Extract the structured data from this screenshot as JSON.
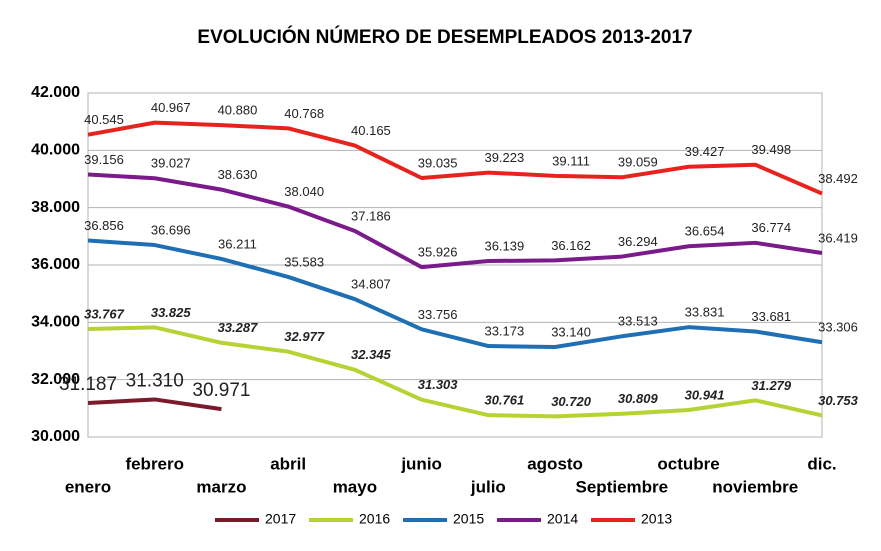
{
  "chart_data": {
    "type": "line",
    "title": "EVOLUCIÓN NÚMERO DE DESEMPLEADOS 2013-2017",
    "categories": [
      "enero",
      "febrero",
      "marzo",
      "abril",
      "mayo",
      "junio",
      "julio",
      "agosto",
      "Septiembre",
      "octubre",
      "noviembre",
      "dic."
    ],
    "series": [
      {
        "name": "2017",
        "color": "#7b1a2a",
        "values": [
          31187,
          31310,
          30971,
          null,
          null,
          null,
          null,
          null,
          null,
          null,
          null,
          null
        ],
        "value_labels": [
          "31.187",
          "31.310",
          "30.971",
          null,
          null,
          null,
          null,
          null,
          null,
          null,
          null,
          null
        ]
      },
      {
        "name": "2016",
        "color": "#b5d334",
        "values": [
          33767,
          33825,
          33287,
          32977,
          32345,
          31303,
          30761,
          30720,
          30809,
          30941,
          31279,
          30753
        ],
        "value_labels": [
          "33.767",
          "33.825",
          "33.287",
          "32.977",
          "32.345",
          "31.303",
          "30.761",
          "30.720",
          "30.809",
          "30.941",
          "31.279",
          "30.753"
        ]
      },
      {
        "name": "2015",
        "color": "#1f6fb5",
        "values": [
          36856,
          36696,
          36211,
          35583,
          34807,
          33756,
          33173,
          33140,
          33513,
          33831,
          33681,
          33306
        ],
        "value_labels": [
          "36.856",
          "36.696",
          "36.211",
          "35.583",
          "34.807",
          "33.756",
          "33.173",
          "33.140",
          "33.513",
          "33.831",
          "33.681",
          "33.306"
        ]
      },
      {
        "name": "2014",
        "color": "#7b1a8a",
        "values": [
          39156,
          39027,
          38630,
          38040,
          37186,
          35926,
          36139,
          36162,
          36294,
          36654,
          36774,
          36419
        ],
        "value_labels": [
          "39.156",
          "39.027",
          "38.630",
          "38.040",
          "37.186",
          "35.926",
          "36.139",
          "36.162",
          "36.294",
          "36.654",
          "36.774",
          "36.419"
        ]
      },
      {
        "name": "2013",
        "color": "#e8231e",
        "values": [
          40545,
          40967,
          40880,
          40768,
          40165,
          39035,
          39223,
          39111,
          39059,
          39427,
          39498,
          38492
        ],
        "value_labels": [
          "40.545",
          "40.967",
          "40.880",
          "40.768",
          "40.165",
          "39.035",
          "39.223",
          "39.111",
          "39.059",
          "39.427",
          "39.498",
          "38.492"
        ]
      }
    ],
    "ylim": [
      30000,
      42000
    ],
    "yticks": [
      {
        "value": 30000,
        "label": "30.000"
      },
      {
        "value": 32000,
        "label": "32.000"
      },
      {
        "value": 34000,
        "label": "34.000"
      },
      {
        "value": 36000,
        "label": "36.000"
      },
      {
        "value": 38000,
        "label": "38.000"
      },
      {
        "value": 40000,
        "label": "40.000"
      },
      {
        "value": 42000,
        "label": "42.000"
      }
    ],
    "grid": true,
    "legend": "bottom"
  }
}
